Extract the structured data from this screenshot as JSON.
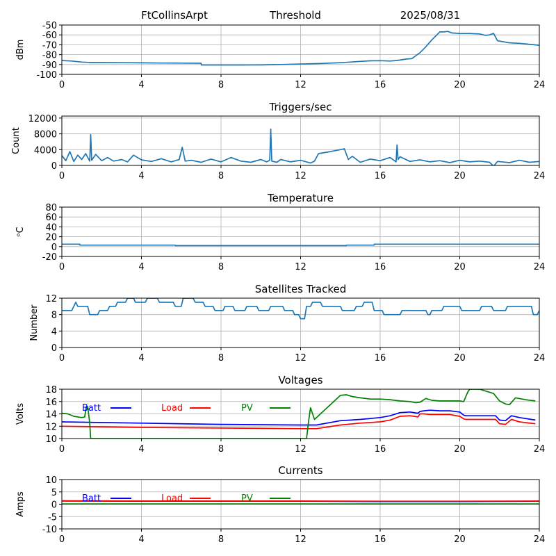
{
  "header": {
    "station": "FtCollinsArpt",
    "title": "Threshold",
    "date": "2025/08/31"
  },
  "colors": {
    "series": "#1f77b4",
    "batt": "#0000ff",
    "load": "#ff0000",
    "pv": "#008000",
    "grid": "#b0b0b0"
  },
  "chart_data": [
    {
      "type": "line",
      "title": "",
      "ylabel": "dBm",
      "ylim": [
        -100,
        -50
      ],
      "yticks": [
        "-100",
        "-90",
        "-80",
        "-70",
        "-60",
        "-50"
      ],
      "xlim": [
        0,
        24
      ],
      "xticks": [
        "0",
        "4",
        "8",
        "12",
        "16",
        "20",
        "24"
      ],
      "grid": true,
      "series": [
        {
          "x": [
            0,
            0.5,
            1,
            1.5,
            2,
            3,
            4,
            5,
            6,
            7,
            7.01,
            8,
            9,
            10,
            10.5,
            11,
            12,
            13,
            14,
            14.5,
            15,
            15.5,
            16,
            16.5,
            16.8,
            17,
            17.3,
            17.6,
            17.8,
            18,
            18.3,
            18.6,
            18.8,
            19,
            19.2,
            19.4,
            19.6,
            20,
            20.5,
            21,
            21.3,
            21.5,
            21.7,
            21.9,
            22.5,
            23,
            23.5,
            24
          ],
          "y": [
            -86,
            -86.5,
            -87.5,
            -88,
            -88,
            -88.2,
            -88.3,
            -88.5,
            -88.6,
            -88.7,
            -90.5,
            -90.5,
            -90.5,
            -90.4,
            -90.2,
            -90,
            -89.5,
            -89,
            -88.2,
            -87.5,
            -86.8,
            -86.3,
            -86.1,
            -86.5,
            -86,
            -85.5,
            -84.5,
            -84,
            -81,
            -78,
            -72,
            -65,
            -61,
            -57,
            -57,
            -56.5,
            -58,
            -58.5,
            -58.6,
            -59,
            -60.5,
            -60,
            -58.5,
            -66,
            -68,
            -68.5,
            -69.5,
            -70.5
          ]
        }
      ]
    },
    {
      "type": "line",
      "title": "Triggers/sec",
      "ylabel": "Count",
      "ylim": [
        0,
        12500
      ],
      "yticks": [
        "0",
        "4000",
        "8000",
        "12000"
      ],
      "xlim": [
        0,
        24
      ],
      "xticks": [
        "0",
        "4",
        "8",
        "12",
        "16",
        "20",
        "24"
      ],
      "grid": true,
      "series": [
        {
          "x": [
            0,
            0.2,
            0.4,
            0.6,
            0.8,
            1,
            1.2,
            1.4,
            1.45,
            1.5,
            1.7,
            2,
            2.3,
            2.6,
            3,
            3.3,
            3.6,
            4,
            4.5,
            5,
            5.5,
            5.9,
            6.05,
            6.2,
            6.5,
            7,
            7.5,
            8,
            8.5,
            9,
            9.5,
            10,
            10.3,
            10.45,
            10.5,
            10.55,
            10.8,
            11,
            11.5,
            12,
            12.5,
            12.7,
            12.9,
            13.5,
            14,
            14.2,
            14.4,
            14.6,
            15,
            15.5,
            16,
            16.5,
            16.8,
            16.85,
            16.9,
            17,
            17.5,
            18,
            18.5,
            19,
            19.5,
            20,
            20.5,
            21,
            21.5,
            21.7,
            21.9,
            22.5,
            23,
            23.5,
            24
          ],
          "y": [
            2500,
            1200,
            3500,
            1000,
            2600,
            1500,
            3000,
            1100,
            7800,
            1300,
            2800,
            1200,
            2000,
            1100,
            1500,
            900,
            2600,
            1400,
            1000,
            1700,
            900,
            1500,
            4600,
            1100,
            1300,
            800,
            1600,
            900,
            2000,
            1100,
            800,
            1500,
            900,
            1300,
            9200,
            1100,
            800,
            1500,
            900,
            1300,
            600,
            1100,
            3000,
            3500,
            4000,
            4200,
            1500,
            2300,
            800,
            1600,
            1200,
            2000,
            900,
            5200,
            1500,
            2200,
            1000,
            1400,
            900,
            1200,
            700,
            1300,
            900,
            1100,
            800,
            -200,
            1000,
            700,
            1300,
            800,
            1000
          ]
        }
      ]
    },
    {
      "type": "line",
      "title": "Temperature",
      "ylabel": "ᵒC",
      "ylim": [
        -20,
        80
      ],
      "yticks": [
        "-20",
        "0",
        "20",
        "40",
        "60",
        "80"
      ],
      "xlim": [
        0,
        24
      ],
      "xticks": [
        "0",
        "4",
        "8",
        "12",
        "16",
        "20",
        "24"
      ],
      "grid": true,
      "series": [
        {
          "x": [
            0,
            0.9,
            0.91,
            5.7,
            5.71,
            14.3,
            14.31,
            15.7,
            15.71,
            24
          ],
          "y": [
            5,
            5,
            3,
            3,
            2,
            2,
            3,
            3,
            5,
            5
          ]
        }
      ]
    },
    {
      "type": "line",
      "title": "Satellites Tracked",
      "ylabel": "Number",
      "ylim": [
        0,
        12
      ],
      "yticks": [
        "0",
        "4",
        "8",
        "12"
      ],
      "xlim": [
        0,
        24
      ],
      "xticks": [
        "0",
        "4",
        "8",
        "12",
        "16",
        "20",
        "24"
      ],
      "grid": true,
      "series": [
        {
          "x": [
            0,
            0.5,
            0.6,
            0.7,
            0.8,
            1.3,
            1.4,
            1.8,
            1.9,
            2.3,
            2.4,
            2.7,
            2.8,
            3.2,
            3.3,
            3.6,
            3.7,
            4.2,
            4.3,
            4.8,
            4.9,
            5.6,
            5.7,
            6,
            6.1,
            6.6,
            6.7,
            7.1,
            7.2,
            7.6,
            7.7,
            8.1,
            8.2,
            8.6,
            8.7,
            9.2,
            9.3,
            9.8,
            9.9,
            10.4,
            10.5,
            11.1,
            11.2,
            11.6,
            11.7,
            11.9,
            12,
            12.2,
            12.3,
            12.5,
            12.6,
            13,
            13.1,
            14,
            14.1,
            14.7,
            14.8,
            15.1,
            15.2,
            15.6,
            15.7,
            16.1,
            16.2,
            17,
            17.1,
            18.3,
            18.4,
            18.5,
            18.6,
            19.1,
            19.2,
            20,
            20.1,
            21,
            21.1,
            21.6,
            21.7,
            22.3,
            22.4,
            23.6,
            23.7,
            23.9,
            24
          ],
          "y": [
            9,
            9,
            10,
            11,
            10,
            10,
            8,
            8,
            9,
            9,
            10,
            10,
            11,
            11,
            12,
            12,
            11,
            11,
            12,
            12,
            11,
            11,
            10,
            10,
            12,
            12,
            11,
            11,
            10,
            10,
            9,
            9,
            10,
            10,
            9,
            9,
            10,
            10,
            9,
            9,
            10,
            10,
            9,
            9,
            8,
            8,
            7,
            7,
            10,
            10,
            11,
            11,
            10,
            10,
            9,
            9,
            10,
            10,
            11,
            11,
            9,
            9,
            8,
            8,
            9,
            9,
            8,
            8,
            9,
            9,
            10,
            10,
            9,
            9,
            10,
            10,
            9,
            9,
            10,
            10,
            8,
            8,
            9
          ]
        }
      ]
    },
    {
      "type": "line",
      "title": "Voltages",
      "ylabel": "Volts",
      "ylim": [
        10,
        18
      ],
      "yticks": [
        "10",
        "12",
        "14",
        "16",
        "18"
      ],
      "xlim": [
        0,
        24
      ],
      "xticks": [
        "0",
        "4",
        "8",
        "12",
        "16",
        "20",
        "24"
      ],
      "grid": true,
      "legend": [
        "Batt",
        "Load",
        "PV"
      ],
      "series": [
        {
          "name": "Batt",
          "x": [
            0,
            4,
            8,
            12,
            12.8,
            14,
            15,
            16,
            16.5,
            17,
            17.5,
            17.9,
            18,
            18.2,
            18.5,
            19,
            19.5,
            20,
            20.2,
            20.3,
            21,
            21.8,
            22,
            22.3,
            22.6,
            23,
            23.8
          ],
          "y": [
            12.7,
            12.5,
            12.3,
            12.2,
            12.2,
            12.9,
            13.1,
            13.4,
            13.7,
            14.2,
            14.3,
            14.1,
            14.4,
            14.5,
            14.6,
            14.5,
            14.5,
            14.3,
            13.8,
            13.7,
            13.7,
            13.7,
            13.0,
            12.9,
            13.7,
            13.4,
            13.0
          ]
        },
        {
          "name": "Load",
          "x": [
            0,
            4,
            8,
            12,
            12.8,
            14,
            15,
            16,
            16.5,
            17,
            17.5,
            17.9,
            18,
            18.2,
            18.5,
            19,
            19.5,
            20,
            20.2,
            20.3,
            21,
            21.8,
            22,
            22.3,
            22.6,
            23,
            23.8
          ],
          "y": [
            12.0,
            11.8,
            11.7,
            11.6,
            11.6,
            12.2,
            12.5,
            12.7,
            13.0,
            13.6,
            13.7,
            13.5,
            14.0,
            14.0,
            13.9,
            13.9,
            13.9,
            13.6,
            13.2,
            13.1,
            13.1,
            13.1,
            12.4,
            12.3,
            13.1,
            12.7,
            12.4
          ]
        },
        {
          "name": "PV",
          "x": [
            0,
            0.3,
            0.6,
            1,
            1.15,
            1.22,
            1.3,
            1.4,
            1.45,
            12.3,
            12.4,
            12.5,
            12.7,
            13,
            13.5,
            14,
            14.3,
            14.6,
            15,
            15.5,
            16,
            16.5,
            17,
            17.5,
            17.8,
            18,
            18.3,
            18.6,
            19,
            19.5,
            20,
            20.2,
            20.4,
            20.5,
            21,
            21.5,
            21.7,
            22,
            22.3,
            22.5,
            22.8,
            23.3,
            23.8
          ],
          "y": [
            14.1,
            14.0,
            13.6,
            13.4,
            13.5,
            15.0,
            15.2,
            12.5,
            10,
            10,
            12.8,
            15.0,
            13.1,
            14.0,
            15.5,
            17.0,
            17.1,
            16.8,
            16.6,
            16.4,
            16.4,
            16.3,
            16.1,
            16.0,
            15.8,
            15.9,
            16.5,
            16.2,
            16.1,
            16.1,
            16.1,
            16.0,
            17.5,
            18,
            18,
            17.5,
            17.3,
            16.1,
            15.6,
            15.5,
            16.6,
            16.3,
            16.1
          ]
        }
      ]
    },
    {
      "type": "line",
      "title": "Currents",
      "ylabel": "Amps",
      "ylim": [
        -10,
        10
      ],
      "yticks": [
        "-10",
        "-5",
        "0",
        "5",
        "10"
      ],
      "xlim": [
        0,
        24
      ],
      "xticks": [
        "0",
        "4",
        "8",
        "12",
        "16",
        "20",
        "24"
      ],
      "grid": true,
      "legend": [
        "Batt",
        "Load",
        "PV"
      ],
      "series": [
        {
          "name": "Batt",
          "x": [
            0,
            4,
            8,
            12,
            16,
            20,
            24
          ],
          "y": [
            1.3,
            1.2,
            1.2,
            1.2,
            1.1,
            1.1,
            1.2
          ]
        },
        {
          "name": "Load",
          "x": [
            0,
            4,
            8,
            12,
            16,
            20,
            24
          ],
          "y": [
            1.4,
            1.3,
            1.3,
            1.3,
            1.2,
            1.2,
            1.3
          ]
        },
        {
          "name": "PV",
          "x": [
            0,
            4,
            8,
            12,
            16,
            20,
            24
          ],
          "y": [
            0.1,
            0.1,
            0.1,
            0.1,
            0.1,
            0.1,
            0.1
          ]
        }
      ]
    }
  ]
}
